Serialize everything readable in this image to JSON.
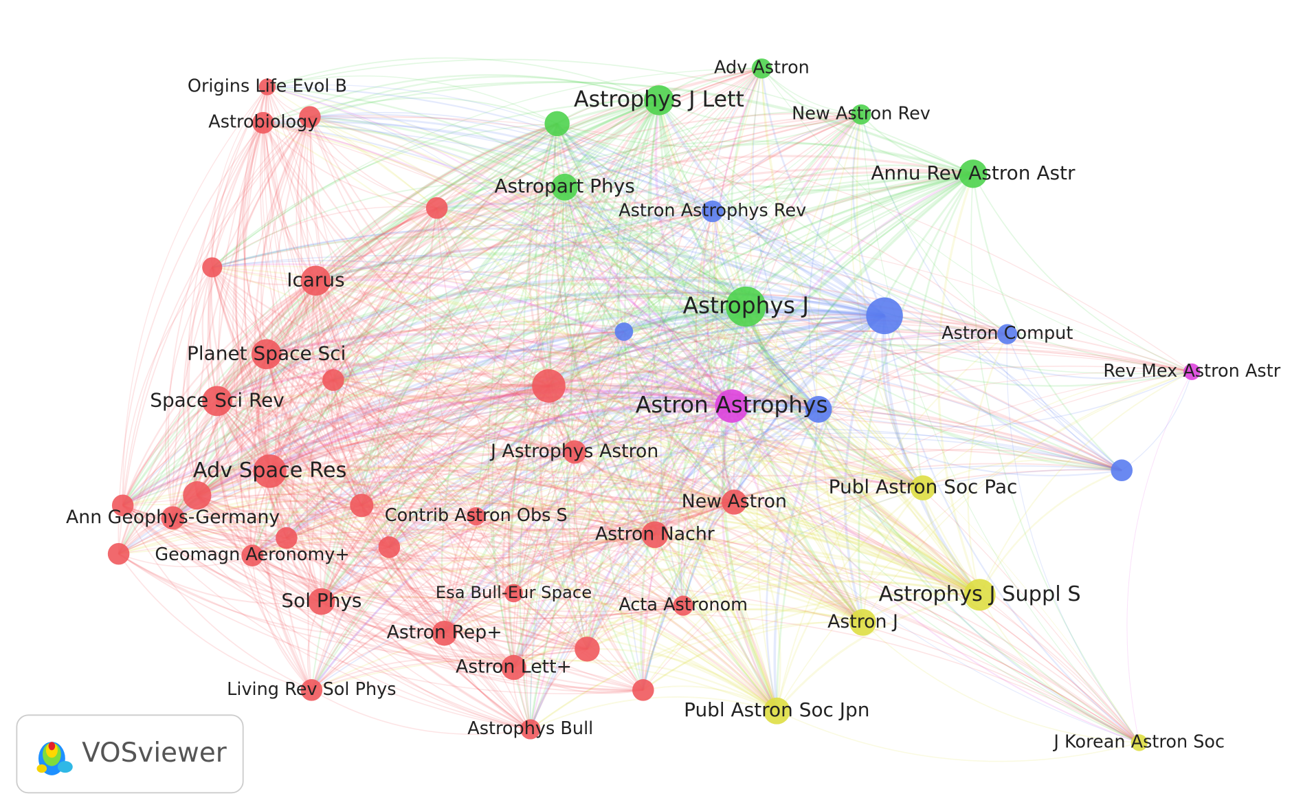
{
  "nodes": [
    {
      "label": "Adv Astron"
    },
    {
      "label": "Astrophys J Lett"
    },
    {
      "label": "New Astron Rev"
    },
    {
      "label": "Annu Rev Astron Astr"
    },
    {
      "label": "Astropart Phys"
    },
    {
      "label": "Astrophys J"
    },
    {
      "label": "Astron Astrophys Rev"
    },
    {
      "label": "Astron Comput"
    },
    {
      "label": "Astron Astrophys"
    },
    {
      "label": "Rev Mex Astron Astr"
    },
    {
      "label": "Publ Astron Soc Pac"
    },
    {
      "label": "Astrophys J Suppl S"
    },
    {
      "label": "Astron J"
    },
    {
      "label": "Publ Astron Soc Jpn"
    },
    {
      "label": "J Korean Astron Soc"
    },
    {
      "label": "Origins Life Evol B"
    },
    {
      "label": "Astrobiology"
    },
    {
      "label": "Icarus"
    },
    {
      "label": "Planet Space Sci"
    },
    {
      "label": "Space Sci Rev"
    },
    {
      "label": "J Astrophys Astron"
    },
    {
      "label": "Adv Space Res"
    },
    {
      "label": "Ann Geophys-Germany"
    },
    {
      "label": "Contrib Astron Obs S"
    },
    {
      "label": "New Astron"
    },
    {
      "label": "Astron Nachr"
    },
    {
      "label": "Geomagn Aeronomy+"
    },
    {
      "label": "Sol Phys"
    },
    {
      "label": "Esa Bull-Eur Space"
    },
    {
      "label": "Acta Astronom"
    },
    {
      "label": "Astron Rep+"
    },
    {
      "label": "Astron Lett+"
    },
    {
      "label": "Living Rev Sol Phys"
    },
    {
      "label": "Astrophys Bull"
    }
  ],
  "logo": "VOSviewer"
}
